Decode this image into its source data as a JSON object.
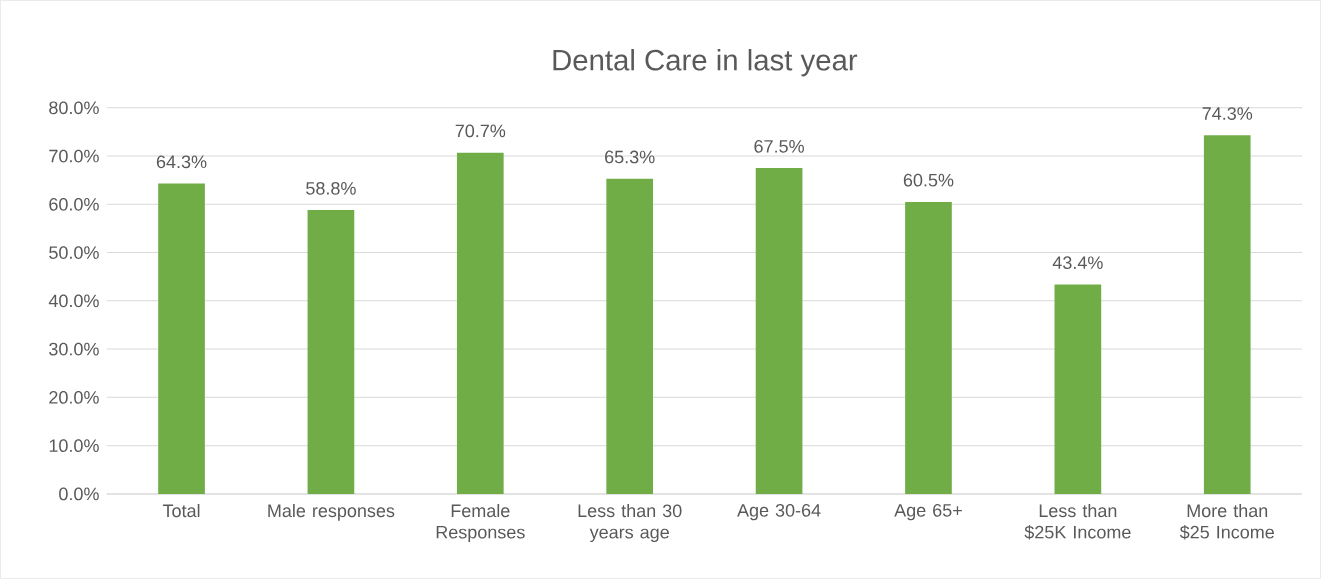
{
  "chart_data": {
    "type": "bar",
    "title": "Dental Care in last year",
    "categories": [
      "Total",
      "Male responses",
      "Female Responses",
      "Less than 30 years age",
      "Age 30-64",
      "Age 65+",
      "Less than $25K Income",
      "More than $25 Income"
    ],
    "values": [
      64.3,
      58.8,
      70.7,
      65.3,
      67.5,
      60.5,
      43.4,
      74.3
    ],
    "value_labels": [
      "64.3%",
      "58.8%",
      "70.7%",
      "65.3%",
      "67.5%",
      "60.5%",
      "43.4%",
      "74.3%"
    ],
    "color": "#70ad47",
    "ylim": [
      0,
      80
    ],
    "yticks": [
      {
        "value": 0,
        "label": "0.0%"
      },
      {
        "value": 10,
        "label": "10.0%"
      },
      {
        "value": 20,
        "label": "20.0%"
      },
      {
        "value": 30,
        "label": "30.0%"
      },
      {
        "value": 40,
        "label": "40.0%"
      },
      {
        "value": 50,
        "label": "50.0%"
      },
      {
        "value": 60,
        "label": "60.0%"
      },
      {
        "value": 70,
        "label": "70.0%"
      },
      {
        "value": 80,
        "label": "80.0%"
      }
    ],
    "grid": "y"
  }
}
